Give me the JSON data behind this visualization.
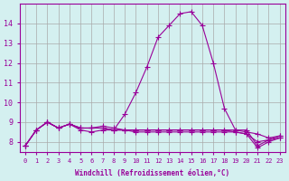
{
  "xlabel": "Windchill (Refroidissement éolien,°C)",
  "background_color": "#d4f0f0",
  "grid_color": "#aaaaaa",
  "line_color": "#990099",
  "x_values": [
    0,
    1,
    2,
    3,
    4,
    5,
    6,
    7,
    8,
    9,
    10,
    11,
    12,
    13,
    14,
    15,
    16,
    17,
    18,
    19,
    20,
    21,
    22,
    23
  ],
  "lines": [
    [
      7.8,
      8.6,
      9.0,
      8.7,
      8.9,
      8.6,
      8.5,
      8.6,
      8.6,
      9.4,
      10.5,
      11.8,
      13.3,
      13.9,
      14.5,
      14.6,
      13.9,
      12.0,
      9.7,
      8.6,
      8.6,
      7.8,
      8.1,
      8.3
    ],
    [
      7.8,
      8.6,
      9.0,
      8.7,
      8.9,
      8.7,
      8.7,
      8.8,
      8.7,
      8.6,
      8.6,
      8.6,
      8.6,
      8.6,
      8.6,
      8.6,
      8.6,
      8.6,
      8.6,
      8.6,
      8.5,
      8.4,
      8.2,
      8.3
    ],
    [
      7.8,
      8.6,
      9.0,
      8.7,
      8.9,
      8.7,
      8.7,
      8.7,
      8.6,
      8.6,
      8.6,
      8.6,
      8.6,
      8.6,
      8.6,
      8.6,
      8.6,
      8.6,
      8.6,
      8.5,
      8.4,
      8.0,
      8.1,
      8.2
    ],
    [
      7.8,
      8.6,
      9.0,
      8.7,
      8.9,
      8.7,
      8.7,
      8.7,
      8.6,
      8.6,
      8.5,
      8.5,
      8.5,
      8.5,
      8.5,
      8.5,
      8.5,
      8.5,
      8.5,
      8.5,
      8.4,
      7.7,
      8.0,
      8.2
    ]
  ],
  "ylim": [
    7.5,
    15.0
  ],
  "xlim": [
    -0.5,
    23.5
  ],
  "yticks": [
    8,
    9,
    10,
    11,
    12,
    13,
    14
  ],
  "xtick_labels": [
    "0",
    "1",
    "2",
    "3",
    "4",
    "5",
    "6",
    "7",
    "8",
    "9",
    "10",
    "11",
    "12",
    "13",
    "14",
    "15",
    "16",
    "17",
    "18",
    "19",
    "20",
    "21",
    "22",
    "23"
  ]
}
